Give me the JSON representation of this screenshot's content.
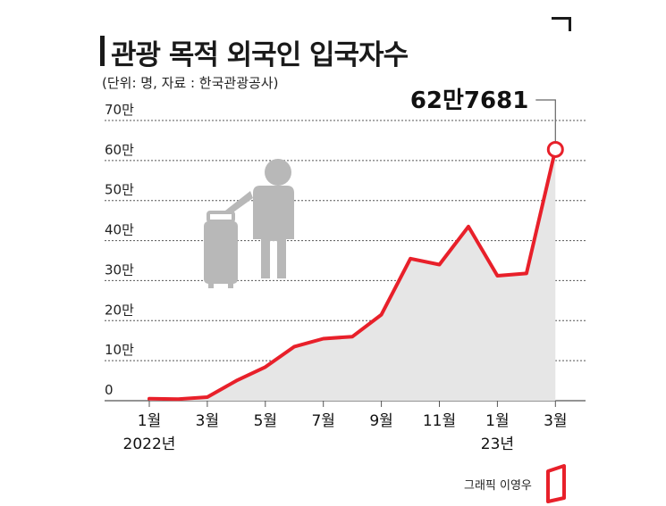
{
  "header": {
    "title": "관광 목적 외국인 입국자수",
    "subtitle": "(단위: 명, 자료 : 한국관광공사)"
  },
  "credit": "그래픽 이영우",
  "colors": {
    "line": "#e8202a",
    "area": "#e6e6e6",
    "grid": "#555555",
    "icon": "#b8b8b8"
  },
  "icons": {
    "traveler": "traveler-with-suitcase-icon",
    "logo": "red-flag-logo-icon"
  },
  "chart_data": {
    "type": "area",
    "ylim": [
      0,
      700000
    ],
    "yticks": [
      0,
      100000,
      200000,
      300000,
      400000,
      500000,
      600000,
      700000
    ],
    "ytick_labels": [
      "0",
      "10만",
      "20만",
      "30만",
      "40만",
      "50만",
      "60만",
      "70만"
    ],
    "x": [
      "2022-01",
      "2022-02",
      "2022-03",
      "2022-04",
      "2022-05",
      "2022-06",
      "2022-07",
      "2022-08",
      "2022-09",
      "2022-10",
      "2022-11",
      "2022-12",
      "2023-01",
      "2023-02",
      "2023-03"
    ],
    "xtick_labels": [
      "1월",
      "",
      "3월",
      "",
      "5월",
      "",
      "7월",
      "",
      "9월",
      "",
      "11월",
      "",
      "1월",
      "",
      "3월"
    ],
    "year_labels": [
      {
        "at": "2022-01",
        "text": "2022년"
      },
      {
        "at": "2023-01",
        "text": "23년"
      }
    ],
    "values": [
      5000,
      4000,
      9000,
      50000,
      84000,
      135000,
      155000,
      160000,
      215000,
      355000,
      340000,
      435000,
      312000,
      318000,
      627681
    ],
    "annotation": {
      "at": "2023-03",
      "text": "62만7681"
    },
    "grid": true
  }
}
